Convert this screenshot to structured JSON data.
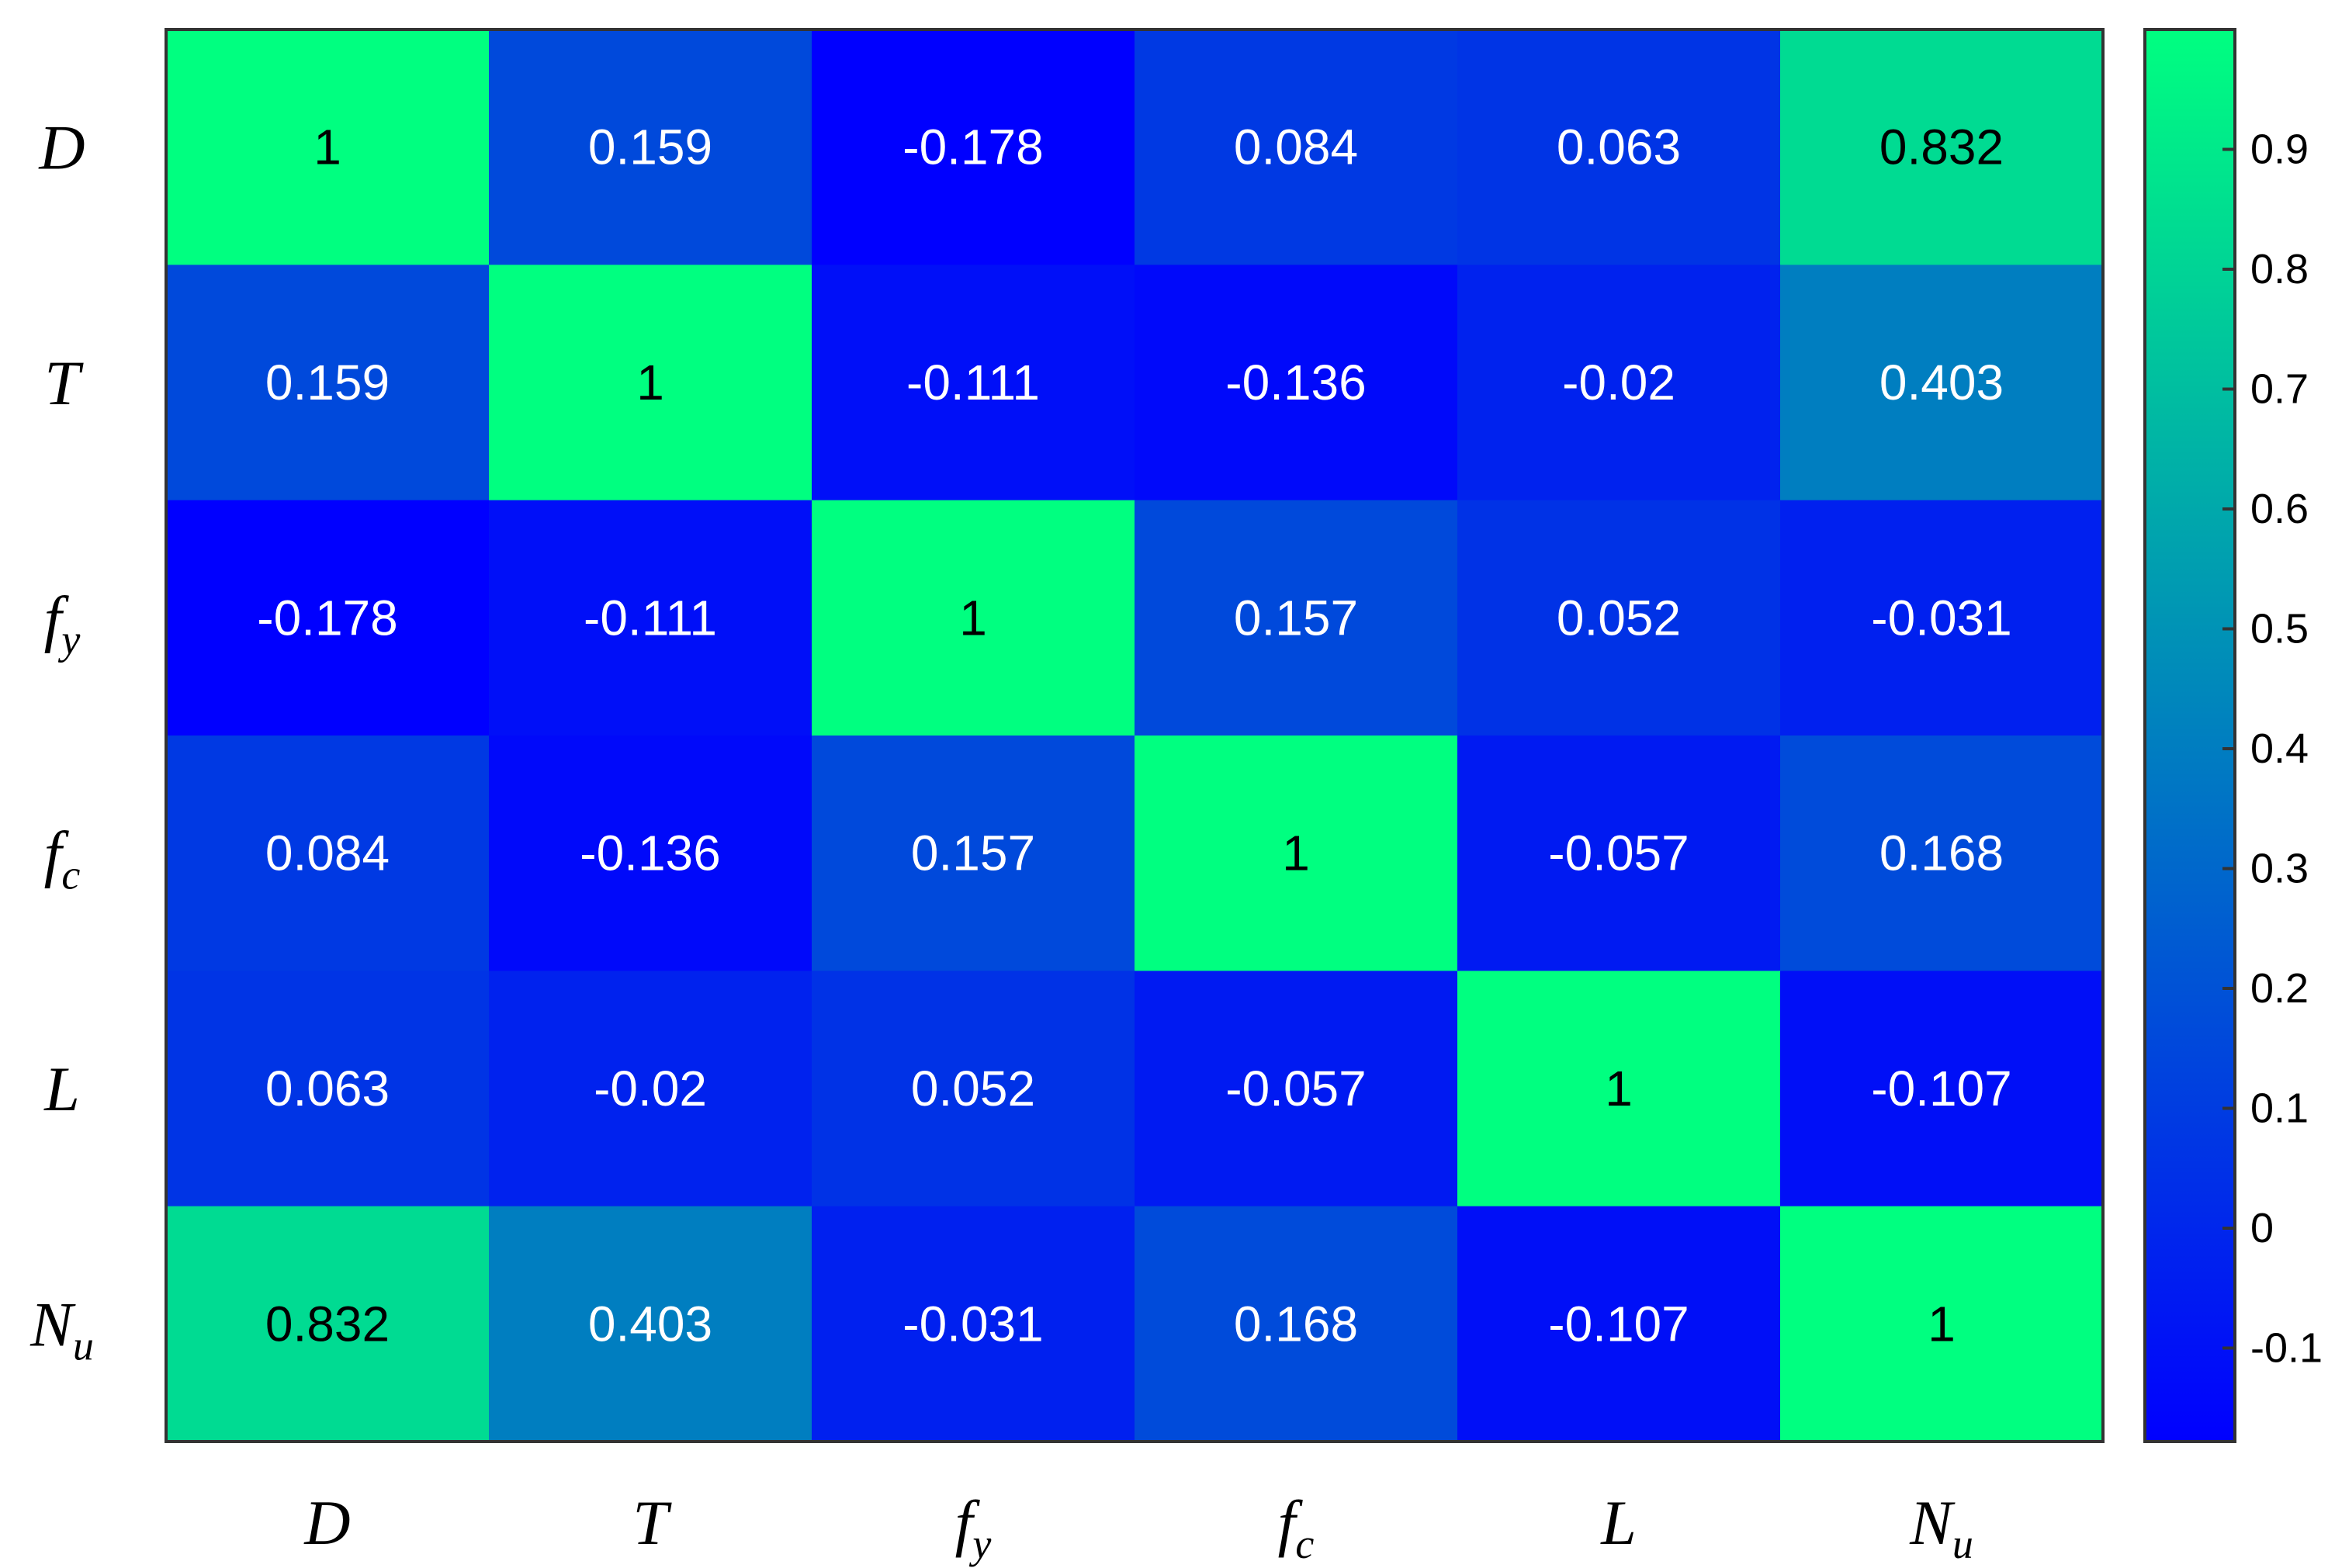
{
  "chart_data": {
    "type": "heatmap",
    "title": "",
    "xlabel": "",
    "ylabel": "",
    "variables": [
      {
        "base": "D",
        "sub": ""
      },
      {
        "base": "T",
        "sub": ""
      },
      {
        "base": "f",
        "sub": "y"
      },
      {
        "base": "f",
        "sub": "c"
      },
      {
        "base": "L",
        "sub": ""
      },
      {
        "base": "N",
        "sub": "u"
      }
    ],
    "matrix": [
      [
        1,
        0.159,
        -0.178,
        0.084,
        0.063,
        0.832
      ],
      [
        0.159,
        1,
        -0.111,
        -0.136,
        -0.02,
        0.403
      ],
      [
        -0.178,
        -0.111,
        1,
        0.157,
        0.052,
        -0.031
      ],
      [
        0.084,
        -0.136,
        0.157,
        1,
        -0.057,
        0.168
      ],
      [
        0.063,
        -0.02,
        0.052,
        -0.057,
        1,
        -0.107
      ],
      [
        0.832,
        0.403,
        -0.031,
        0.168,
        -0.107,
        1
      ]
    ],
    "labels": [
      [
        "1",
        "0.159",
        "-0.178",
        "0.084",
        "0.063",
        "0.832"
      ],
      [
        "0.159",
        "1",
        "-0.111",
        "-0.136",
        "-0.02",
        "0.403"
      ],
      [
        "-0.178",
        "-0.111",
        "1",
        "0.157",
        "0.052",
        "-0.031"
      ],
      [
        "0.084",
        "-0.136",
        "0.157",
        "1",
        "-0.057",
        "0.168"
      ],
      [
        "0.063",
        "-0.02",
        "0.052",
        "-0.057",
        "1",
        "-0.107"
      ],
      [
        "0.832",
        "0.403",
        "-0.031",
        "0.168",
        "-0.107",
        "1"
      ]
    ],
    "colorbar": {
      "range": [
        -0.178,
        1
      ],
      "ticks": [
        -0.1,
        0,
        0.1,
        0.2,
        0.3,
        0.4,
        0.5,
        0.6,
        0.7,
        0.8,
        0.9
      ],
      "tick_labels": [
        "-0.1",
        "0",
        "0.1",
        "0.2",
        "0.3",
        "0.4",
        "0.5",
        "0.6",
        "0.7",
        "0.8",
        "0.9"
      ],
      "low_color": "#0000ff",
      "high_color": "#00ff80"
    },
    "grid": false,
    "legend": "colorbar-right"
  }
}
